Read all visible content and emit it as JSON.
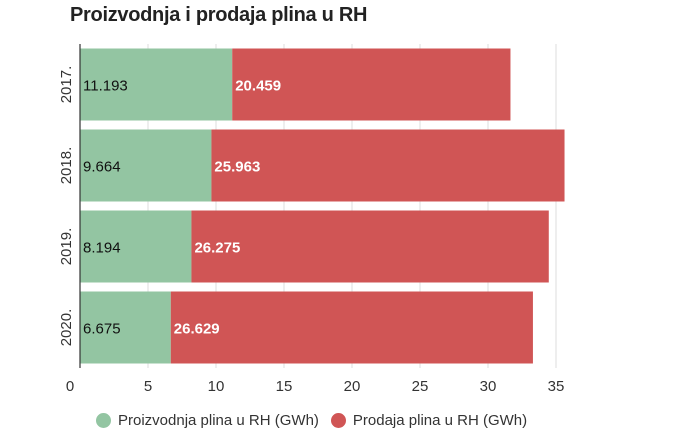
{
  "title": "Proizvodnja i prodaja plina u RH",
  "legend": {
    "production": "Proizvodnja plina u RH (GWh)",
    "sales": "Prodaja plina u RH (GWh)"
  },
  "colors": {
    "production": "#93c5a2",
    "sales": "#d05555",
    "grid": "#dddddd",
    "axis": "#333333"
  },
  "chart_data": {
    "type": "bar",
    "orientation": "horizontal",
    "stacked": true,
    "title": "Proizvodnja i prodaja plina u RH",
    "categories": [
      "2017.",
      "2018.",
      "2019.",
      "2020."
    ],
    "series": [
      {
        "name": "Proizvodnja plina u RH (GWh)",
        "values": [
          11.193,
          9.664,
          8.194,
          6.675
        ],
        "labels": [
          "11.193",
          "9.664",
          "8.194",
          "6.675"
        ]
      },
      {
        "name": "Prodaja plina u RH (GWh)",
        "values": [
          20.459,
          25.963,
          26.275,
          26.629
        ],
        "labels": [
          "20.459",
          "25.963",
          "26.275",
          "26.629"
        ]
      }
    ],
    "xlim": [
      0,
      35
    ],
    "xticks": [
      0,
      5,
      10,
      15,
      20,
      25,
      30,
      35
    ],
    "grid": true,
    "legend_position": "bottom"
  }
}
